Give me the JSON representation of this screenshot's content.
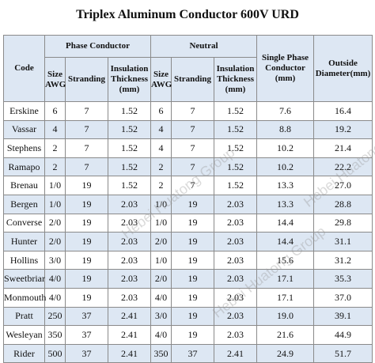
{
  "title": "Triplex Aluminum Conductor 600V URD",
  "headers": {
    "code": "Code",
    "phase_conductor": "Phase Conductor",
    "neutral": "Neutral",
    "single_phase_line1": "Single Phase",
    "single_phase_line2": "Conductor",
    "single_phase_line3": "(mm)",
    "outside_line1": "Outside",
    "outside_line2": "Diameter(mm)",
    "size_line1": "Size",
    "size_line2": "AWG",
    "stranding": "Stranding",
    "insulation_line1": "Insulation",
    "insulation_line2": "Thickness",
    "insulation_line3": "(mm)"
  },
  "rows": [
    {
      "code": "Erskine",
      "p_size": "6",
      "p_str": "7",
      "p_ins": "1.52",
      "n_size": "6",
      "n_str": "7",
      "n_ins": "1.52",
      "single": "7.6",
      "od": "16.4"
    },
    {
      "code": "Vassar",
      "p_size": "4",
      "p_str": "7",
      "p_ins": "1.52",
      "n_size": "4",
      "n_str": "7",
      "n_ins": "1.52",
      "single": "8.8",
      "od": "19.2"
    },
    {
      "code": "Stephens",
      "p_size": "2",
      "p_str": "7",
      "p_ins": "1.52",
      "n_size": "4",
      "n_str": "7",
      "n_ins": "1.52",
      "single": "10.2",
      "od": "21.4"
    },
    {
      "code": "Ramapo",
      "p_size": "2",
      "p_str": "7",
      "p_ins": "1.52",
      "n_size": "2",
      "n_str": "7",
      "n_ins": "1.52",
      "single": "10.2",
      "od": "22.2"
    },
    {
      "code": "Brenau",
      "p_size": "1/0",
      "p_str": "19",
      "p_ins": "1.52",
      "n_size": "2",
      "n_str": "7",
      "n_ins": "1.52",
      "single": "13.3",
      "od": "27.0"
    },
    {
      "code": "Bergen",
      "p_size": "1/0",
      "p_str": "19",
      "p_ins": "2.03",
      "n_size": "1/0",
      "n_str": "19",
      "n_ins": "2.03",
      "single": "13.3",
      "od": "28.8"
    },
    {
      "code": "Converse",
      "p_size": "2/0",
      "p_str": "19",
      "p_ins": "2.03",
      "n_size": "1/0",
      "n_str": "19",
      "n_ins": "2.03",
      "single": "14.4",
      "od": "29.8"
    },
    {
      "code": "Hunter",
      "p_size": "2/0",
      "p_str": "19",
      "p_ins": "2.03",
      "n_size": "2/0",
      "n_str": "19",
      "n_ins": "2.03",
      "single": "14.4",
      "od": "31.1"
    },
    {
      "code": "Hollins",
      "p_size": "3/0",
      "p_str": "19",
      "p_ins": "2.03",
      "n_size": "1/0",
      "n_str": "19",
      "n_ins": "2.03",
      "single": "15.6",
      "od": "31.2"
    },
    {
      "code": "Sweetbriar",
      "p_size": "4/0",
      "p_str": "19",
      "p_ins": "2.03",
      "n_size": "2/0",
      "n_str": "19",
      "n_ins": "2.03",
      "single": "17.1",
      "od": "35.3"
    },
    {
      "code": "Monmouth",
      "p_size": "4/0",
      "p_str": "19",
      "p_ins": "2.03",
      "n_size": "4/0",
      "n_str": "19",
      "n_ins": "2.03",
      "single": "17.1",
      "od": "37.0"
    },
    {
      "code": "Pratt",
      "p_size": "250",
      "p_str": "37",
      "p_ins": "2.41",
      "n_size": "3/0",
      "n_str": "19",
      "n_ins": "2.03",
      "single": "19.0",
      "od": "39.1"
    },
    {
      "code": "Wesleyan",
      "p_size": "350",
      "p_str": "37",
      "p_ins": "2.41",
      "n_size": "4/0",
      "n_str": "19",
      "n_ins": "2.03",
      "single": "21.6",
      "od": "44.9"
    },
    {
      "code": "Rider",
      "p_size": "500",
      "p_str": "37",
      "p_ins": "2.41",
      "n_size": "350",
      "n_str": "37",
      "n_ins": "2.41",
      "single": "24.9",
      "od": "51.7"
    }
  ],
  "watermark": "Hebei Huatong Group",
  "colors": {
    "header_bg": "#dde7f3",
    "alt_row_bg": "#dde7f3",
    "border": "#8a8a8a"
  }
}
